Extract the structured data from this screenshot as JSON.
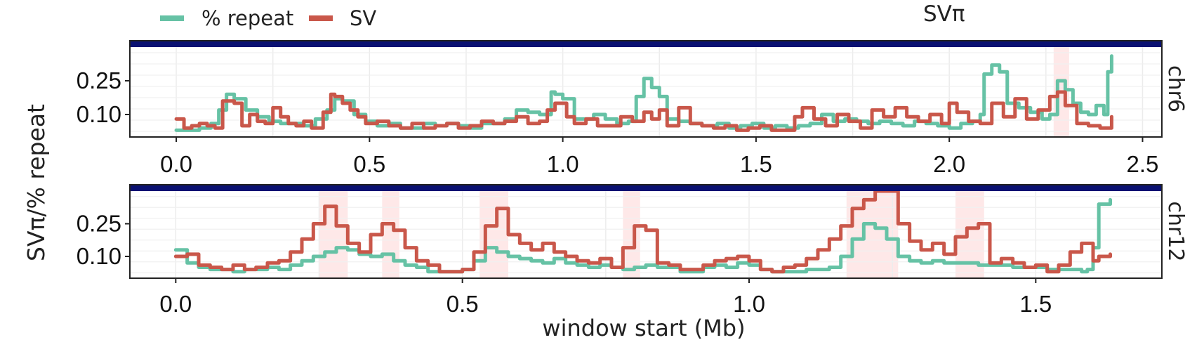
{
  "chart_data": {
    "type": "line",
    "title": "SVπ",
    "xlabel": "window start (Mb)",
    "ylabel": "SVπ/% repeat",
    "legend": {
      "placement": "top-left",
      "entries": [
        {
          "name": "% repeat",
          "color": "#66c2a5"
        },
        {
          "name": "SV",
          "color": "#c9574a"
        }
      ]
    },
    "grid": true,
    "strip_color": "#0a1172",
    "highlight_color": "#fde0e0",
    "colors": {
      "repeat": "#66c2a5",
      "sv": "#c9574a"
    },
    "panels": [
      {
        "strip_label": "chr6",
        "xlim": [
          -0.12,
          2.55
        ],
        "ylim": [
          0,
          0.4
        ],
        "x_ticks": [
          0.0,
          0.5,
          1.0,
          1.5,
          2.0,
          2.5
        ],
        "x_tick_labels": [
          "0.0",
          "0.5",
          "1.0",
          "1.5",
          "2.0",
          "2.5"
        ],
        "y_ticks": [
          0.1,
          0.25
        ],
        "y_tick_labels": [
          "0.10",
          "0.25"
        ],
        "highlights": [
          [
            2.27,
            2.31
          ]
        ],
        "series": [
          {
            "name": "% repeat",
            "x": [
              0.0,
              0.03,
              0.06,
              0.09,
              0.11,
              0.13,
              0.15,
              0.18,
              0.21,
              0.24,
              0.27,
              0.3,
              0.33,
              0.36,
              0.39,
              0.41,
              0.43,
              0.46,
              0.49,
              0.52,
              0.55,
              0.58,
              0.61,
              0.64,
              0.67,
              0.7,
              0.73,
              0.76,
              0.79,
              0.82,
              0.85,
              0.88,
              0.91,
              0.94,
              0.97,
              0.98,
              1.0,
              1.03,
              1.05,
              1.08,
              1.11,
              1.14,
              1.17,
              1.19,
              1.21,
              1.23,
              1.25,
              1.27,
              1.3,
              1.33,
              1.36,
              1.4,
              1.43,
              1.46,
              1.49,
              1.52,
              1.55,
              1.58,
              1.61,
              1.64,
              1.67,
              1.7,
              1.73,
              1.76,
              1.79,
              1.82,
              1.85,
              1.88,
              1.91,
              1.94,
              1.97,
              2.0,
              2.03,
              2.06,
              2.08,
              2.09,
              2.11,
              2.13,
              2.15,
              2.18,
              2.21,
              2.24,
              2.26,
              2.28,
              2.3,
              2.32,
              2.34,
              2.36,
              2.38,
              2.4,
              2.41,
              2.42
            ],
            "y": [
              0.03,
              0.03,
              0.04,
              0.06,
              0.12,
              0.19,
              0.17,
              0.12,
              0.09,
              0.07,
              0.06,
              0.06,
              0.05,
              0.08,
              0.12,
              0.17,
              0.16,
              0.1,
              0.07,
              0.05,
              0.06,
              0.04,
              0.04,
              0.06,
              0.05,
              0.06,
              0.05,
              0.04,
              0.06,
              0.06,
              0.08,
              0.12,
              0.11,
              0.1,
              0.2,
              0.19,
              0.17,
              0.08,
              0.08,
              0.1,
              0.08,
              0.06,
              0.07,
              0.18,
              0.26,
              0.22,
              0.18,
              0.08,
              0.07,
              0.06,
              0.05,
              0.06,
              0.04,
              0.05,
              0.06,
              0.04,
              0.05,
              0.04,
              0.05,
              0.06,
              0.1,
              0.07,
              0.08,
              0.07,
              0.06,
              0.07,
              0.06,
              0.05,
              0.07,
              0.06,
              0.05,
              0.04,
              0.06,
              0.07,
              0.1,
              0.28,
              0.32,
              0.29,
              0.15,
              0.13,
              0.11,
              0.08,
              0.1,
              0.25,
              0.21,
              0.15,
              0.11,
              0.1,
              0.14,
              0.1,
              0.29,
              0.36
            ]
          },
          {
            "name": "SV",
            "x": [
              0.0,
              0.02,
              0.04,
              0.06,
              0.08,
              0.1,
              0.12,
              0.15,
              0.17,
              0.19,
              0.21,
              0.23,
              0.25,
              0.27,
              0.29,
              0.31,
              0.33,
              0.35,
              0.38,
              0.4,
              0.41,
              0.43,
              0.45,
              0.47,
              0.49,
              0.52,
              0.55,
              0.58,
              0.61,
              0.64,
              0.67,
              0.7,
              0.73,
              0.76,
              0.79,
              0.82,
              0.85,
              0.88,
              0.91,
              0.94,
              0.96,
              0.98,
              1.01,
              1.03,
              1.06,
              1.09,
              1.12,
              1.15,
              1.18,
              1.21,
              1.23,
              1.25,
              1.27,
              1.3,
              1.33,
              1.36,
              1.39,
              1.42,
              1.45,
              1.48,
              1.51,
              1.54,
              1.57,
              1.6,
              1.62,
              1.65,
              1.68,
              1.71,
              1.74,
              1.77,
              1.8,
              1.83,
              1.86,
              1.89,
              1.92,
              1.95,
              1.98,
              2.0,
              2.02,
              2.05,
              2.08,
              2.11,
              2.14,
              2.17,
              2.2,
              2.23,
              2.26,
              2.28,
              2.3,
              2.33,
              2.36,
              2.39,
              2.42
            ],
            "y": [
              0.08,
              0.04,
              0.05,
              0.06,
              0.05,
              0.04,
              0.16,
              0.15,
              0.05,
              0.1,
              0.07,
              0.06,
              0.13,
              0.09,
              0.06,
              0.05,
              0.07,
              0.04,
              0.11,
              0.19,
              0.18,
              0.15,
              0.12,
              0.09,
              0.06,
              0.07,
              0.05,
              0.04,
              0.06,
              0.04,
              0.05,
              0.06,
              0.04,
              0.05,
              0.07,
              0.06,
              0.07,
              0.09,
              0.06,
              0.07,
              0.12,
              0.15,
              0.09,
              0.06,
              0.08,
              0.05,
              0.05,
              0.09,
              0.07,
              0.11,
              0.08,
              0.12,
              0.05,
              0.13,
              0.06,
              0.05,
              0.04,
              0.05,
              0.03,
              0.04,
              0.05,
              0.03,
              0.03,
              0.09,
              0.13,
              0.08,
              0.05,
              0.1,
              0.07,
              0.04,
              0.12,
              0.09,
              0.13,
              0.09,
              0.07,
              0.1,
              0.06,
              0.15,
              0.11,
              0.07,
              0.06,
              0.15,
              0.09,
              0.17,
              0.08,
              0.12,
              0.18,
              0.2,
              0.14,
              0.06,
              0.05,
              0.04,
              0.09
            ]
          }
        ]
      },
      {
        "strip_label": "chr12",
        "xlim": [
          -0.08,
          1.72
        ],
        "ylim": [
          0,
          0.4
        ],
        "x_ticks": [
          0.0,
          0.5,
          1.0,
          1.5
        ],
        "x_tick_labels": [
          "0.0",
          "0.5",
          "1.0",
          "1.5"
        ],
        "y_ticks": [
          0.1,
          0.25
        ],
        "y_tick_labels": [
          "0.10",
          "0.25"
        ],
        "highlights": [
          [
            0.25,
            0.3
          ],
          [
            0.36,
            0.39
          ],
          [
            0.53,
            0.58
          ],
          [
            0.78,
            0.81
          ],
          [
            1.17,
            1.26
          ],
          [
            1.36,
            1.41
          ]
        ],
        "series": [
          {
            "name": "% repeat",
            "x": [
              0.0,
              0.02,
              0.04,
              0.06,
              0.08,
              0.1,
              0.12,
              0.14,
              0.16,
              0.18,
              0.2,
              0.22,
              0.24,
              0.26,
              0.28,
              0.3,
              0.32,
              0.34,
              0.36,
              0.38,
              0.4,
              0.42,
              0.44,
              0.46,
              0.48,
              0.5,
              0.52,
              0.54,
              0.56,
              0.58,
              0.6,
              0.62,
              0.64,
              0.66,
              0.68,
              0.7,
              0.72,
              0.74,
              0.76,
              0.78,
              0.8,
              0.82,
              0.84,
              0.86,
              0.88,
              0.9,
              0.92,
              0.94,
              0.96,
              0.98,
              1.0,
              1.02,
              1.04,
              1.06,
              1.08,
              1.1,
              1.12,
              1.14,
              1.16,
              1.18,
              1.2,
              1.22,
              1.24,
              1.26,
              1.28,
              1.3,
              1.32,
              1.34,
              1.36,
              1.38,
              1.4,
              1.42,
              1.44,
              1.46,
              1.48,
              1.5,
              1.52,
              1.54,
              1.56,
              1.58,
              1.59,
              1.6,
              1.61,
              1.63
            ],
            "y": [
              0.13,
              0.07,
              0.05,
              0.04,
              0.04,
              0.03,
              0.04,
              0.04,
              0.05,
              0.04,
              0.06,
              0.08,
              0.1,
              0.12,
              0.14,
              0.13,
              0.11,
              0.1,
              0.11,
              0.08,
              0.06,
              0.05,
              0.03,
              0.03,
              0.03,
              0.04,
              0.08,
              0.14,
              0.12,
              0.1,
              0.09,
              0.08,
              0.07,
              0.09,
              0.07,
              0.06,
              0.05,
              0.06,
              0.05,
              0.04,
              0.05,
              0.06,
              0.05,
              0.05,
              0.03,
              0.03,
              0.05,
              0.06,
              0.05,
              0.07,
              0.06,
              0.04,
              0.03,
              0.03,
              0.03,
              0.04,
              0.04,
              0.05,
              0.1,
              0.18,
              0.25,
              0.23,
              0.18,
              0.1,
              0.08,
              0.07,
              0.08,
              0.07,
              0.07,
              0.07,
              0.06,
              0.06,
              0.06,
              0.05,
              0.05,
              0.05,
              0.04,
              0.04,
              0.04,
              0.03,
              0.04,
              0.14,
              0.34,
              0.36
            ]
          },
          {
            "name": "SV",
            "x": [
              0.0,
              0.02,
              0.04,
              0.06,
              0.08,
              0.1,
              0.12,
              0.14,
              0.16,
              0.18,
              0.2,
              0.22,
              0.24,
              0.26,
              0.28,
              0.3,
              0.32,
              0.34,
              0.36,
              0.38,
              0.4,
              0.42,
              0.44,
              0.46,
              0.48,
              0.5,
              0.52,
              0.54,
              0.56,
              0.58,
              0.6,
              0.62,
              0.64,
              0.66,
              0.68,
              0.7,
              0.72,
              0.74,
              0.76,
              0.78,
              0.8,
              0.82,
              0.84,
              0.86,
              0.88,
              0.9,
              0.92,
              0.94,
              0.96,
              0.98,
              1.0,
              1.02,
              1.04,
              1.06,
              1.08,
              1.1,
              1.12,
              1.14,
              1.16,
              1.18,
              1.2,
              1.22,
              1.24,
              1.26,
              1.28,
              1.3,
              1.32,
              1.34,
              1.36,
              1.38,
              1.4,
              1.42,
              1.44,
              1.46,
              1.48,
              1.5,
              1.52,
              1.54,
              1.56,
              1.58,
              1.6,
              1.61,
              1.63
            ],
            "y": [
              0.1,
              0.11,
              0.06,
              0.05,
              0.04,
              0.06,
              0.04,
              0.05,
              0.07,
              0.08,
              0.12,
              0.18,
              0.25,
              0.33,
              0.24,
              0.16,
              0.12,
              0.2,
              0.25,
              0.22,
              0.14,
              0.08,
              0.06,
              0.03,
              0.03,
              0.04,
              0.12,
              0.24,
              0.32,
              0.2,
              0.16,
              0.13,
              0.16,
              0.12,
              0.1,
              0.08,
              0.07,
              0.09,
              0.05,
              0.14,
              0.24,
              0.22,
              0.07,
              0.06,
              0.04,
              0.04,
              0.06,
              0.08,
              0.09,
              0.1,
              0.08,
              0.04,
              0.03,
              0.05,
              0.06,
              0.09,
              0.13,
              0.18,
              0.24,
              0.32,
              0.36,
              0.42,
              0.4,
              0.25,
              0.17,
              0.13,
              0.16,
              0.11,
              0.19,
              0.23,
              0.25,
              0.07,
              0.09,
              0.07,
              0.05,
              0.06,
              0.03,
              0.06,
              0.12,
              0.16,
              0.08,
              0.1,
              0.11
            ]
          }
        ]
      }
    ]
  }
}
